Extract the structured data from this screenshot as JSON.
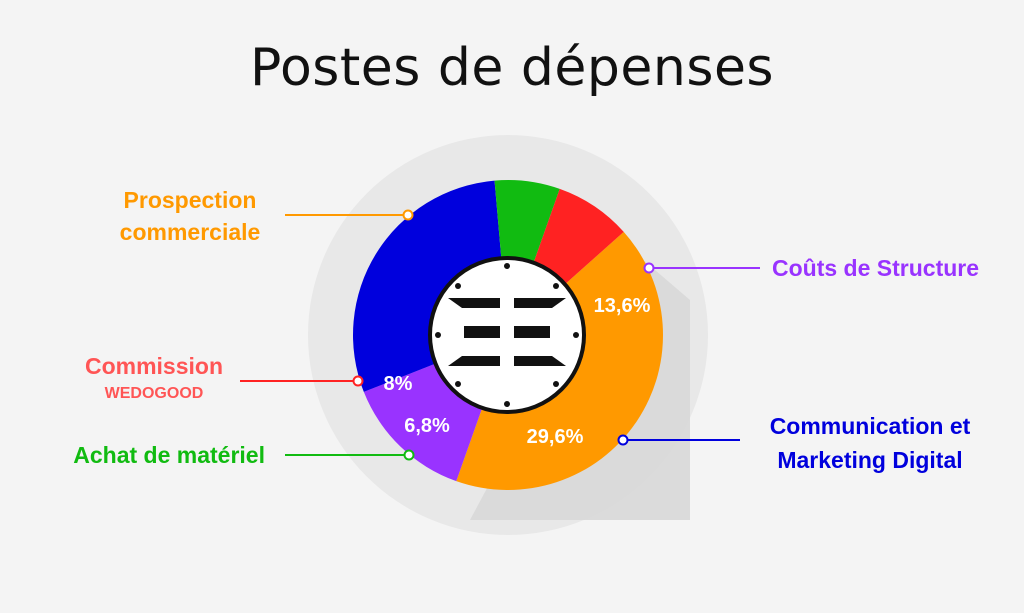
{
  "chart_data": {
    "type": "pie",
    "title": "Postes de dépenses",
    "slices": [
      {
        "label_lines": [
          "Prospection",
          "commerciale"
        ],
        "value": 42,
        "value_label": "42%",
        "color": "#ff9900"
      },
      {
        "label_lines": [
          "Coûts de Structure"
        ],
        "value": 13.6,
        "value_label": "13,6%",
        "color": "#9933ff"
      },
      {
        "label_lines": [
          "Communication et",
          "Marketing Digital"
        ],
        "value": 29.6,
        "value_label": "29,6%",
        "color": "#0000dd"
      },
      {
        "label_lines": [
          "Achat de matériel"
        ],
        "value": 6.8,
        "value_label": "6,8%",
        "color": "#11bb11"
      },
      {
        "label_lines": [
          "Commission",
          "WEDOGOOD"
        ],
        "value": 8,
        "value_label": "8%",
        "color": "#ff2222"
      }
    ],
    "legend": "callouts around the donut"
  },
  "colors": {
    "background": "#f4f4f4",
    "outer_ring": "#e8e8e8",
    "shadow": "#d6d6d6",
    "commission_label": "#ff5555"
  },
  "logo": {
    "name": "center-logo",
    "shape": "circle with horizontal bars"
  }
}
